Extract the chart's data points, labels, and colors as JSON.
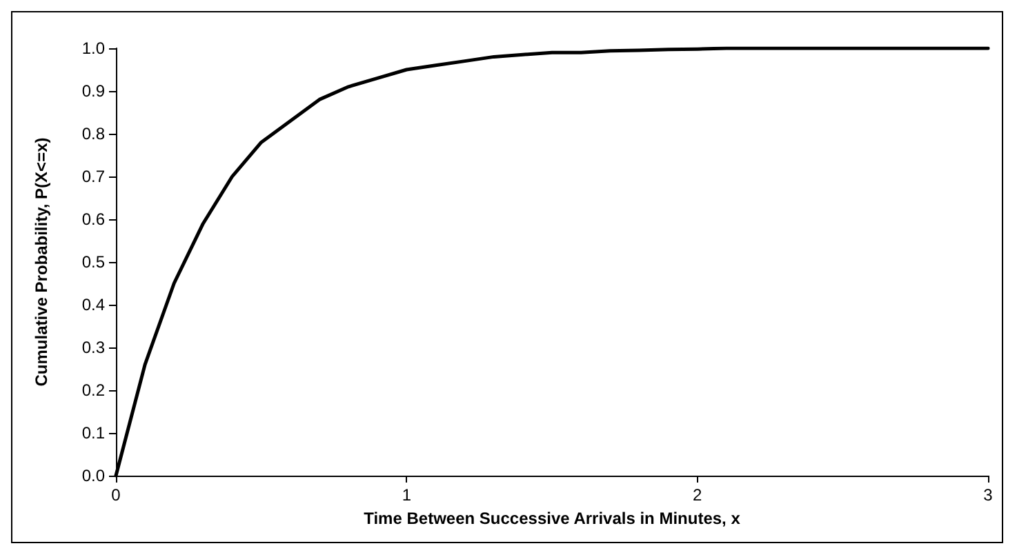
{
  "chart_data": {
    "type": "line",
    "xlabel": "Time Between Successive Arrivals in Minutes, x",
    "ylabel": "Cumulative Probability, P(X<=x)",
    "x": [
      0,
      0.1,
      0.2,
      0.3,
      0.4,
      0.5,
      0.6,
      0.7,
      0.8,
      0.9,
      1.0,
      1.1,
      1.2,
      1.3,
      1.4,
      1.5,
      1.6,
      1.7,
      1.8,
      1.9,
      2.0,
      2.1,
      2.2,
      2.4,
      2.6,
      2.8,
      3.0
    ],
    "series": [
      {
        "color": "#000000",
        "values": [
          0,
          0.26,
          0.45,
          0.59,
          0.7,
          0.78,
          0.83,
          0.88,
          0.91,
          0.93,
          0.95,
          0.96,
          0.97,
          0.98,
          0.985,
          0.99,
          0.99,
          0.994,
          0.995,
          0.997,
          0.998,
          1.0,
          1.0,
          1.0,
          1.0,
          1.0,
          1.0
        ]
      }
    ],
    "xlim": [
      0,
      3
    ],
    "xticks": [
      0,
      1,
      2,
      3
    ],
    "ylim": [
      0,
      1
    ],
    "yticks": [
      {
        "value": 0,
        "label": "0.0"
      },
      0.1,
      0.2,
      0.3,
      0.4,
      0.5,
      0.6,
      0.7,
      0.8,
      0.9,
      {
        "value": 1,
        "label": "1.0"
      }
    ],
    "marker": "none",
    "line_style": "solid"
  }
}
